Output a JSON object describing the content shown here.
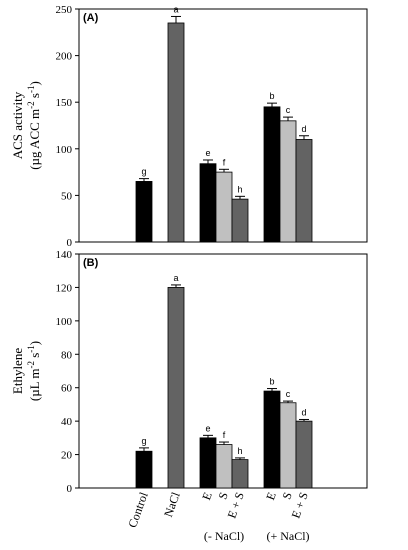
{
  "chart_data": [
    {
      "type": "bar",
      "panel_label": "(A)",
      "ylabel_line1": "ACS activity",
      "ylabel_line2": "(µg ACC m",
      "ylabel_sup1": "-2",
      "ylabel_mid": " s",
      "ylabel_sup2": "-1",
      "ylabel_end": ")",
      "ylim": [
        0,
        250
      ],
      "yticks": [
        0,
        50,
        100,
        150,
        200,
        250
      ],
      "bars": [
        {
          "pos": 0,
          "value": 65,
          "error": 3,
          "color": "#000000",
          "sig": "g"
        },
        {
          "pos": 1,
          "value": 235,
          "error": 7,
          "color": "#636363",
          "sig": "a"
        },
        {
          "pos": 2.0,
          "value": 84,
          "error": 4,
          "color": "#000000",
          "sig": "e"
        },
        {
          "pos": 2.5,
          "value": 75,
          "error": 3,
          "color": "#c0c0c0",
          "sig": "f"
        },
        {
          "pos": 3.0,
          "value": 46,
          "error": 3,
          "color": "#636363",
          "sig": "h"
        },
        {
          "pos": 4.0,
          "value": 145,
          "error": 4,
          "color": "#000000",
          "sig": "b"
        },
        {
          "pos": 4.5,
          "value": 130,
          "error": 4,
          "color": "#c0c0c0",
          "sig": "c"
        },
        {
          "pos": 5.0,
          "value": 110,
          "error": 4,
          "color": "#636363",
          "sig": "d"
        }
      ]
    },
    {
      "type": "bar",
      "panel_label": "(B)",
      "ylabel_line1": "Ethylene",
      "ylabel_line2": "(µL m",
      "ylabel_sup1": "-2",
      "ylabel_mid": " s",
      "ylabel_sup2": "-1",
      "ylabel_end": ")",
      "ylim": [
        0,
        140
      ],
      "yticks": [
        0,
        20,
        40,
        60,
        80,
        100,
        120,
        140
      ],
      "bars": [
        {
          "pos": 0,
          "value": 22,
          "error": 2,
          "color": "#000000",
          "sig": "g"
        },
        {
          "pos": 1,
          "value": 120,
          "error": 1.5,
          "color": "#636363",
          "sig": "a"
        },
        {
          "pos": 2.0,
          "value": 30,
          "error": 1.5,
          "color": "#000000",
          "sig": "e"
        },
        {
          "pos": 2.5,
          "value": 26,
          "error": 1.5,
          "color": "#c0c0c0",
          "sig": "f"
        },
        {
          "pos": 3.0,
          "value": 17,
          "error": 1,
          "color": "#636363",
          "sig": "h"
        },
        {
          "pos": 4.0,
          "value": 58,
          "error": 1.5,
          "color": "#000000",
          "sig": "b"
        },
        {
          "pos": 4.5,
          "value": 51,
          "error": 1,
          "color": "#c0c0c0",
          "sig": "c"
        },
        {
          "pos": 5.0,
          "value": 40,
          "error": 1,
          "color": "#636363",
          "sig": "d"
        }
      ],
      "categories": [
        {
          "pos": 0,
          "label": "Control"
        },
        {
          "pos": 1,
          "label": "NaCl"
        },
        {
          "pos": 2.0,
          "label": "E"
        },
        {
          "pos": 2.5,
          "label": "S"
        },
        {
          "pos": 3.0,
          "label": "E + S"
        },
        {
          "pos": 4.0,
          "label": "E"
        },
        {
          "pos": 4.5,
          "label": "S"
        },
        {
          "pos": 5.0,
          "label": "E + S"
        }
      ],
      "groups": [
        {
          "pos": 2.5,
          "label": "(- NaCl)"
        },
        {
          "pos": 4.5,
          "label": "(+ NaCl)"
        }
      ]
    }
  ]
}
